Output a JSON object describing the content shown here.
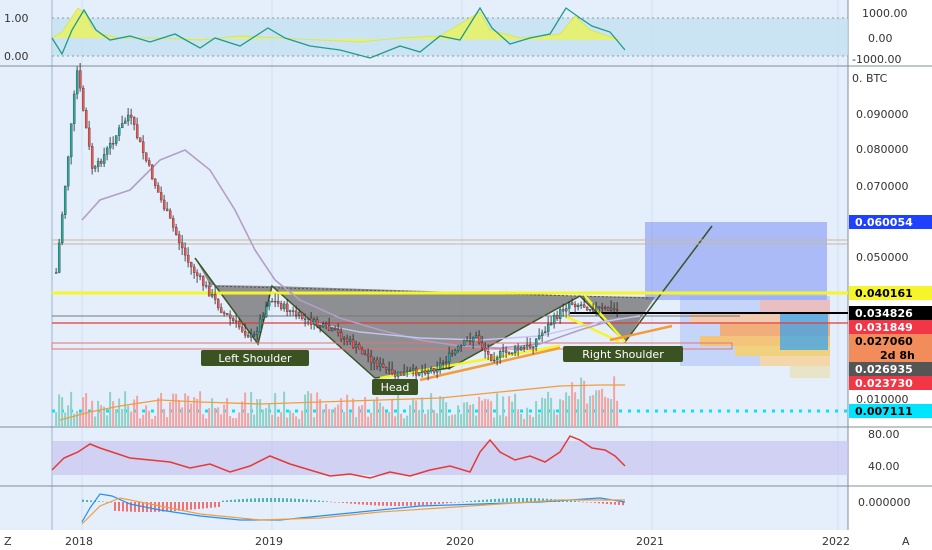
{
  "colors": {
    "bg": "#e5effb",
    "grid": "#cfdff2",
    "up": "#26a69a",
    "down": "#ef5350",
    "yellow": "#f5f52a",
    "orange": "#f39c3d",
    "lilac": "#c7c4f0",
    "blue_box": "#6a8cf0",
    "label_green": "#3b5323"
  },
  "x_axis": {
    "ticks": [
      "2018",
      "2019",
      "2020",
      "2021",
      "2022"
    ],
    "corner_left": "Z",
    "corner_right": "A"
  },
  "panels": {
    "top": {
      "ticks": [
        "1.00",
        "0.00"
      ],
      "right_ticks": [
        "1000.00",
        "0.00",
        "-1000.00"
      ]
    },
    "price": {
      "symbol_label": "0. BTC",
      "ticks": [
        "0.090000",
        "0.080000",
        "0.070000",
        "0.050000",
        "0.010000"
      ],
      "price_tags": [
        {
          "label": "0.060054",
          "bg": "#1e40ff",
          "fg": "#ffffff"
        },
        {
          "label": "0.040161",
          "bg": "#f5f52a",
          "fg": "#000000"
        },
        {
          "label": "0.034826",
          "bg": "#000000",
          "fg": "#ffffff"
        },
        {
          "label": "0.031849",
          "bg": "#f23645",
          "fg": "#ffffff"
        },
        {
          "label": "0.027060",
          "bg": "#f28c5a",
          "fg": "#000000"
        },
        {
          "label": "2d 8h",
          "bg": "#f28c5a",
          "fg": "#000000"
        },
        {
          "label": "0.026935",
          "bg": "#555555",
          "fg": "#ffffff"
        },
        {
          "label": "0.023730",
          "bg": "#f23645",
          "fg": "#ffffff"
        },
        {
          "label": "0.007111",
          "bg": "#00e5ff",
          "fg": "#000000"
        }
      ]
    },
    "rsi": {
      "ticks": [
        "80.00",
        "40.00"
      ]
    },
    "macd": {
      "ticks": [
        "0.000000"
      ]
    }
  },
  "annotations": {
    "left_shoulder": "Left Shoulder",
    "head": "Head",
    "right_shoulder": "Right Shoulder"
  },
  "chart_data": {
    "type": "candlestick",
    "title": "",
    "y_range": [
      0.005,
      0.1
    ],
    "x_range": [
      "2017-11-25",
      "2022-02-05"
    ],
    "key_levels": {
      "neckline_high": 0.040161,
      "current_close": 0.034826,
      "support_red_1": 0.031849,
      "support_red_2": 0.02706,
      "target_blue": 0.060054,
      "low_cyan": 0.007111
    },
    "price_swings": [
      {
        "date": "2017-12-01",
        "price": 0.045
      },
      {
        "date": "2018-01-10",
        "price": 0.1
      },
      {
        "date": "2018-02-10",
        "price": 0.072
      },
      {
        "date": "2018-04-20",
        "price": 0.088
      },
      {
        "date": "2018-06-20",
        "price": 0.065
      },
      {
        "date": "2018-08-15",
        "price": 0.047
      },
      {
        "date": "2018-10-20",
        "price": 0.034
      },
      {
        "date": "2018-12-15",
        "price": 0.027
      },
      {
        "date": "2019-01-15",
        "price": 0.038
      },
      {
        "date": "2019-03-15",
        "price": 0.033
      },
      {
        "date": "2019-06-01",
        "price": 0.028
      },
      {
        "date": "2019-09-10",
        "price": 0.017
      },
      {
        "date": "2019-12-01",
        "price": 0.019
      },
      {
        "date": "2020-02-15",
        "price": 0.028
      },
      {
        "date": "2020-03-15",
        "price": 0.022
      },
      {
        "date": "2020-06-01",
        "price": 0.025
      },
      {
        "date": "2020-08-15",
        "price": 0.037
      },
      {
        "date": "2020-10-15",
        "price": 0.035
      },
      {
        "date": "2020-11-20",
        "price": 0.0348
      }
    ],
    "rsi_points": [
      {
        "date": "2017-12-01",
        "value": 40
      },
      {
        "date": "2018-01-15",
        "value": 68
      },
      {
        "date": "2018-06-01",
        "value": 50
      },
      {
        "date": "2018-10-01",
        "value": 42
      },
      {
        "date": "2019-01-15",
        "value": 55
      },
      {
        "date": "2019-06-01",
        "value": 52
      },
      {
        "date": "2019-10-01",
        "value": 35
      },
      {
        "date": "2020-02-15",
        "value": 64
      },
      {
        "date": "2020-05-01",
        "value": 58
      },
      {
        "date": "2020-08-20",
        "value": 76
      },
      {
        "date": "2020-11-20",
        "value": 42
      }
    ]
  }
}
